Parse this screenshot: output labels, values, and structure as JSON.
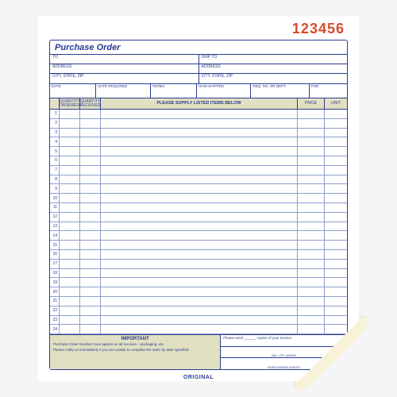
{
  "order_number": "123456",
  "order_number_color": "#d84a2b",
  "title": "Purchase Order",
  "title_color": "#2a3d8f",
  "border_color": "#2a3d8f",
  "header_band_bg": "#e2e0c3",
  "ship_from": {
    "to": "TO",
    "address": "ADDRESS",
    "csz": "CITY, STATE, ZIP"
  },
  "ship_to": {
    "to": "SHIP TO",
    "address": "ADDRESS",
    "csz": "CITY, STATE, ZIP"
  },
  "meta": {
    "date": "DATE",
    "date_required": "DATE REQUIRED",
    "terms": "TERMS",
    "how_shipped": "HOW SHIPPED",
    "req_no": "REQ. NO. OR DEPT.",
    "fob": "FOB"
  },
  "items_header": {
    "qty_ordered": "QUANTITY ORDERED",
    "qty_received": "QUANTITY RECEIVED",
    "supply": "PLEASE SUPPLY LISTED ITEMS BELOW",
    "price": "PRICE",
    "unit": "UNIT"
  },
  "col_widths": {
    "num": 12,
    "qty_ord": 26,
    "qty_rec": 26,
    "desc": "flex",
    "price": 34,
    "unit": 28
  },
  "row_count": 24,
  "footer": {
    "important_title": "IMPORTANT",
    "line1": "Purchase Order Number must appear on all invoices – packaging, etc.",
    "line2": "Please notify us immediately if you are unable to complete the order by date specified.",
    "please_send": "Please send ______ copies of your invoice.",
    "bill_of_lading": "BILL OF LADING",
    "purchasing_agent": "PURCHASING AGENT"
  },
  "original_label": "ORIGINAL",
  "duplicate_page_color": "#f8f3d8"
}
